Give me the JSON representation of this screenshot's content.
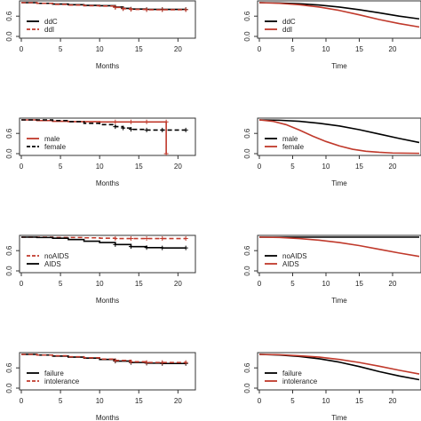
{
  "chart_data": [
    {
      "type": "line",
      "xlabel": "Months",
      "ylabel": "",
      "ylim": [
        0,
        1
      ],
      "xticks": [
        0,
        5,
        10,
        15,
        20
      ],
      "yticks": [
        "0.0",
        "0.6"
      ],
      "legend": "bottom-left",
      "series": [
        {
          "name": "ddC",
          "color": "#000000",
          "dash": "solid",
          "marks": true,
          "points": [
            [
              0,
              1.0
            ],
            [
              2,
              0.98
            ],
            [
              4,
              0.96
            ],
            [
              6,
              0.94
            ],
            [
              8,
              0.92
            ],
            [
              10,
              0.91
            ],
            [
              12,
              0.87
            ],
            [
              13,
              0.83
            ],
            [
              14,
              0.81
            ],
            [
              16,
              0.8
            ],
            [
              18,
              0.8
            ],
            [
              21,
              0.8
            ]
          ]
        },
        {
          "name": "ddI",
          "color": "#c0392b",
          "dash": "dashed",
          "marks": true,
          "points": [
            [
              0,
              1.0
            ],
            [
              2,
              0.98
            ],
            [
              4,
              0.95
            ],
            [
              6,
              0.93
            ],
            [
              8,
              0.91
            ],
            [
              10,
              0.9
            ],
            [
              12,
              0.86
            ],
            [
              13,
              0.82
            ],
            [
              14,
              0.8
            ],
            [
              16,
              0.79
            ],
            [
              18,
              0.79
            ],
            [
              21,
              0.79
            ]
          ]
        }
      ]
    },
    {
      "type": "line",
      "xlabel": "Time",
      "ylabel": "",
      "ylim": [
        0,
        1
      ],
      "xticks": [
        0,
        5,
        10,
        15,
        20
      ],
      "yticks": [
        "0.0",
        "0.6"
      ],
      "legend": "bottom-left",
      "series": [
        {
          "name": "ddC",
          "color": "#000000",
          "dash": "solid",
          "marks": false,
          "points": [
            [
              0,
              1.0
            ],
            [
              3,
              0.99
            ],
            [
              6,
              0.97
            ],
            [
              9,
              0.93
            ],
            [
              12,
              0.87
            ],
            [
              15,
              0.79
            ],
            [
              18,
              0.7
            ],
            [
              21,
              0.6
            ],
            [
              24,
              0.52
            ]
          ]
        },
        {
          "name": "ddI",
          "color": "#c0392b",
          "dash": "solid",
          "marks": false,
          "points": [
            [
              0,
              1.0
            ],
            [
              3,
              0.98
            ],
            [
              6,
              0.94
            ],
            [
              9,
              0.87
            ],
            [
              12,
              0.77
            ],
            [
              15,
              0.64
            ],
            [
              18,
              0.5
            ],
            [
              21,
              0.38
            ],
            [
              24,
              0.28
            ]
          ]
        }
      ]
    },
    {
      "type": "line",
      "xlabel": "Months",
      "ylabel": "",
      "ylim": [
        0,
        1
      ],
      "xticks": [
        0,
        5,
        10,
        15,
        20
      ],
      "yticks": [
        "0.0",
        "0.6"
      ],
      "legend": "bottom-left",
      "series": [
        {
          "name": "male",
          "color": "#c0392b",
          "dash": "solid",
          "marks": true,
          "points": [
            [
              0,
              1.0
            ],
            [
              2,
              0.98
            ],
            [
              4,
              0.96
            ],
            [
              6,
              0.95
            ],
            [
              8,
              0.95
            ],
            [
              10,
              0.94
            ],
            [
              12,
              0.94
            ],
            [
              14,
              0.94
            ],
            [
              16,
              0.94
            ],
            [
              18.5,
              0.94
            ],
            [
              18.5,
              0.0
            ]
          ]
        },
        {
          "name": "female",
          "color": "#000000",
          "dash": "dashed",
          "marks": true,
          "points": [
            [
              0,
              1.0
            ],
            [
              2,
              1.0
            ],
            [
              4,
              0.98
            ],
            [
              6,
              0.95
            ],
            [
              8,
              0.9
            ],
            [
              10,
              0.86
            ],
            [
              12,
              0.8
            ],
            [
              13,
              0.76
            ],
            [
              14,
              0.72
            ],
            [
              16,
              0.7
            ],
            [
              18,
              0.7
            ],
            [
              21,
              0.7
            ]
          ]
        }
      ]
    },
    {
      "type": "line",
      "xlabel": "Time",
      "ylabel": "",
      "ylim": [
        0,
        1
      ],
      "xticks": [
        0,
        5,
        10,
        15,
        20
      ],
      "yticks": [
        "0.0",
        "0.6"
      ],
      "legend": "bottom-left",
      "series": [
        {
          "name": "male",
          "color": "#000000",
          "dash": "solid",
          "marks": false,
          "points": [
            [
              0,
              1.0
            ],
            [
              3,
              0.99
            ],
            [
              6,
              0.96
            ],
            [
              9,
              0.9
            ],
            [
              12,
              0.82
            ],
            [
              15,
              0.71
            ],
            [
              18,
              0.58
            ],
            [
              21,
              0.45
            ],
            [
              24,
              0.33
            ]
          ]
        },
        {
          "name": "female",
          "color": "#c0392b",
          "dash": "solid",
          "marks": false,
          "points": [
            [
              0,
              1.0
            ],
            [
              2,
              0.96
            ],
            [
              4,
              0.86
            ],
            [
              6,
              0.7
            ],
            [
              8,
              0.52
            ],
            [
              10,
              0.36
            ],
            [
              12,
              0.23
            ],
            [
              14,
              0.13
            ],
            [
              16,
              0.07
            ],
            [
              18,
              0.04
            ],
            [
              20,
              0.02
            ],
            [
              24,
              0.01
            ]
          ]
        }
      ]
    },
    {
      "type": "line",
      "xlabel": "Months",
      "ylabel": "",
      "ylim": [
        0,
        1
      ],
      "xticks": [
        0,
        5,
        10,
        15,
        20
      ],
      "yticks": [
        "0.0",
        "0.6"
      ],
      "legend": "bottom-left",
      "series": [
        {
          "name": "noAIDS",
          "color": "#c0392b",
          "dash": "dashed",
          "marks": true,
          "points": [
            [
              0,
              1.0
            ],
            [
              4,
              0.99
            ],
            [
              8,
              0.98
            ],
            [
              10,
              0.97
            ],
            [
              12,
              0.96
            ],
            [
              14,
              0.96
            ],
            [
              16,
              0.96
            ],
            [
              18,
              0.96
            ],
            [
              21,
              0.96
            ]
          ]
        },
        {
          "name": "AIDS",
          "color": "#000000",
          "dash": "solid",
          "marks": true,
          "points": [
            [
              0,
              1.0
            ],
            [
              2,
              0.99
            ],
            [
              4,
              0.97
            ],
            [
              6,
              0.93
            ],
            [
              8,
              0.88
            ],
            [
              10,
              0.84
            ],
            [
              12,
              0.78
            ],
            [
              14,
              0.72
            ],
            [
              16,
              0.69
            ],
            [
              18,
              0.68
            ],
            [
              21,
              0.68
            ]
          ]
        }
      ]
    },
    {
      "type": "line",
      "xlabel": "Time",
      "ylabel": "",
      "ylim": [
        0,
        1
      ],
      "xticks": [
        0,
        5,
        10,
        15,
        20
      ],
      "yticks": [
        "0.0",
        "0.6"
      ],
      "legend": "bottom-left",
      "series": [
        {
          "name": "noAIDS",
          "color": "#000000",
          "dash": "solid",
          "marks": false,
          "points": [
            [
              0,
              1.0
            ],
            [
              6,
              1.0
            ],
            [
              12,
              1.0
            ],
            [
              18,
              1.0
            ],
            [
              24,
              1.0
            ]
          ]
        },
        {
          "name": "AIDS",
          "color": "#c0392b",
          "dash": "solid",
          "marks": false,
          "points": [
            [
              0,
              1.0
            ],
            [
              3,
              0.99
            ],
            [
              6,
              0.96
            ],
            [
              9,
              0.91
            ],
            [
              12,
              0.84
            ],
            [
              15,
              0.75
            ],
            [
              18,
              0.64
            ],
            [
              21,
              0.53
            ],
            [
              24,
              0.43
            ]
          ]
        }
      ]
    },
    {
      "type": "line",
      "xlabel": "Months",
      "ylabel": "",
      "ylim": [
        0,
        1
      ],
      "xticks": [
        0,
        5,
        10,
        15,
        20
      ],
      "yticks": [
        "0.0",
        "0.6"
      ],
      "legend": "bottom-left",
      "series": [
        {
          "name": "failure",
          "color": "#000000",
          "dash": "solid",
          "marks": true,
          "points": [
            [
              0,
              1.0
            ],
            [
              2,
              0.98
            ],
            [
              4,
              0.95
            ],
            [
              6,
              0.92
            ],
            [
              8,
              0.89
            ],
            [
              10,
              0.85
            ],
            [
              12,
              0.8
            ],
            [
              14,
              0.76
            ],
            [
              16,
              0.74
            ],
            [
              18,
              0.73
            ],
            [
              21,
              0.73
            ]
          ]
        },
        {
          "name": "intolerance",
          "color": "#c0392b",
          "dash": "dashed",
          "marks": true,
          "points": [
            [
              0,
              1.0
            ],
            [
              2,
              0.98
            ],
            [
              4,
              0.96
            ],
            [
              6,
              0.93
            ],
            [
              8,
              0.9
            ],
            [
              10,
              0.86
            ],
            [
              12,
              0.82
            ],
            [
              14,
              0.78
            ],
            [
              16,
              0.76
            ],
            [
              18,
              0.76
            ],
            [
              21,
              0.76
            ]
          ]
        }
      ]
    },
    {
      "type": "line",
      "xlabel": "Time",
      "ylabel": "",
      "ylim": [
        0,
        1
      ],
      "xticks": [
        0,
        5,
        10,
        15,
        20
      ],
      "yticks": [
        "0.0",
        "0.6"
      ],
      "legend": "bottom-left",
      "series": [
        {
          "name": "failure",
          "color": "#000000",
          "dash": "solid",
          "marks": false,
          "points": [
            [
              0,
              1.0
            ],
            [
              3,
              0.98
            ],
            [
              6,
              0.94
            ],
            [
              9,
              0.87
            ],
            [
              12,
              0.77
            ],
            [
              15,
              0.64
            ],
            [
              18,
              0.49
            ],
            [
              21,
              0.36
            ],
            [
              24,
              0.25
            ]
          ]
        },
        {
          "name": "intolerance",
          "color": "#c0392b",
          "dash": "solid",
          "marks": false,
          "points": [
            [
              0,
              1.0
            ],
            [
              3,
              0.99
            ],
            [
              6,
              0.96
            ],
            [
              9,
              0.92
            ],
            [
              12,
              0.85
            ],
            [
              15,
              0.76
            ],
            [
              18,
              0.65
            ],
            [
              21,
              0.53
            ],
            [
              24,
              0.42
            ]
          ]
        }
      ]
    }
  ]
}
